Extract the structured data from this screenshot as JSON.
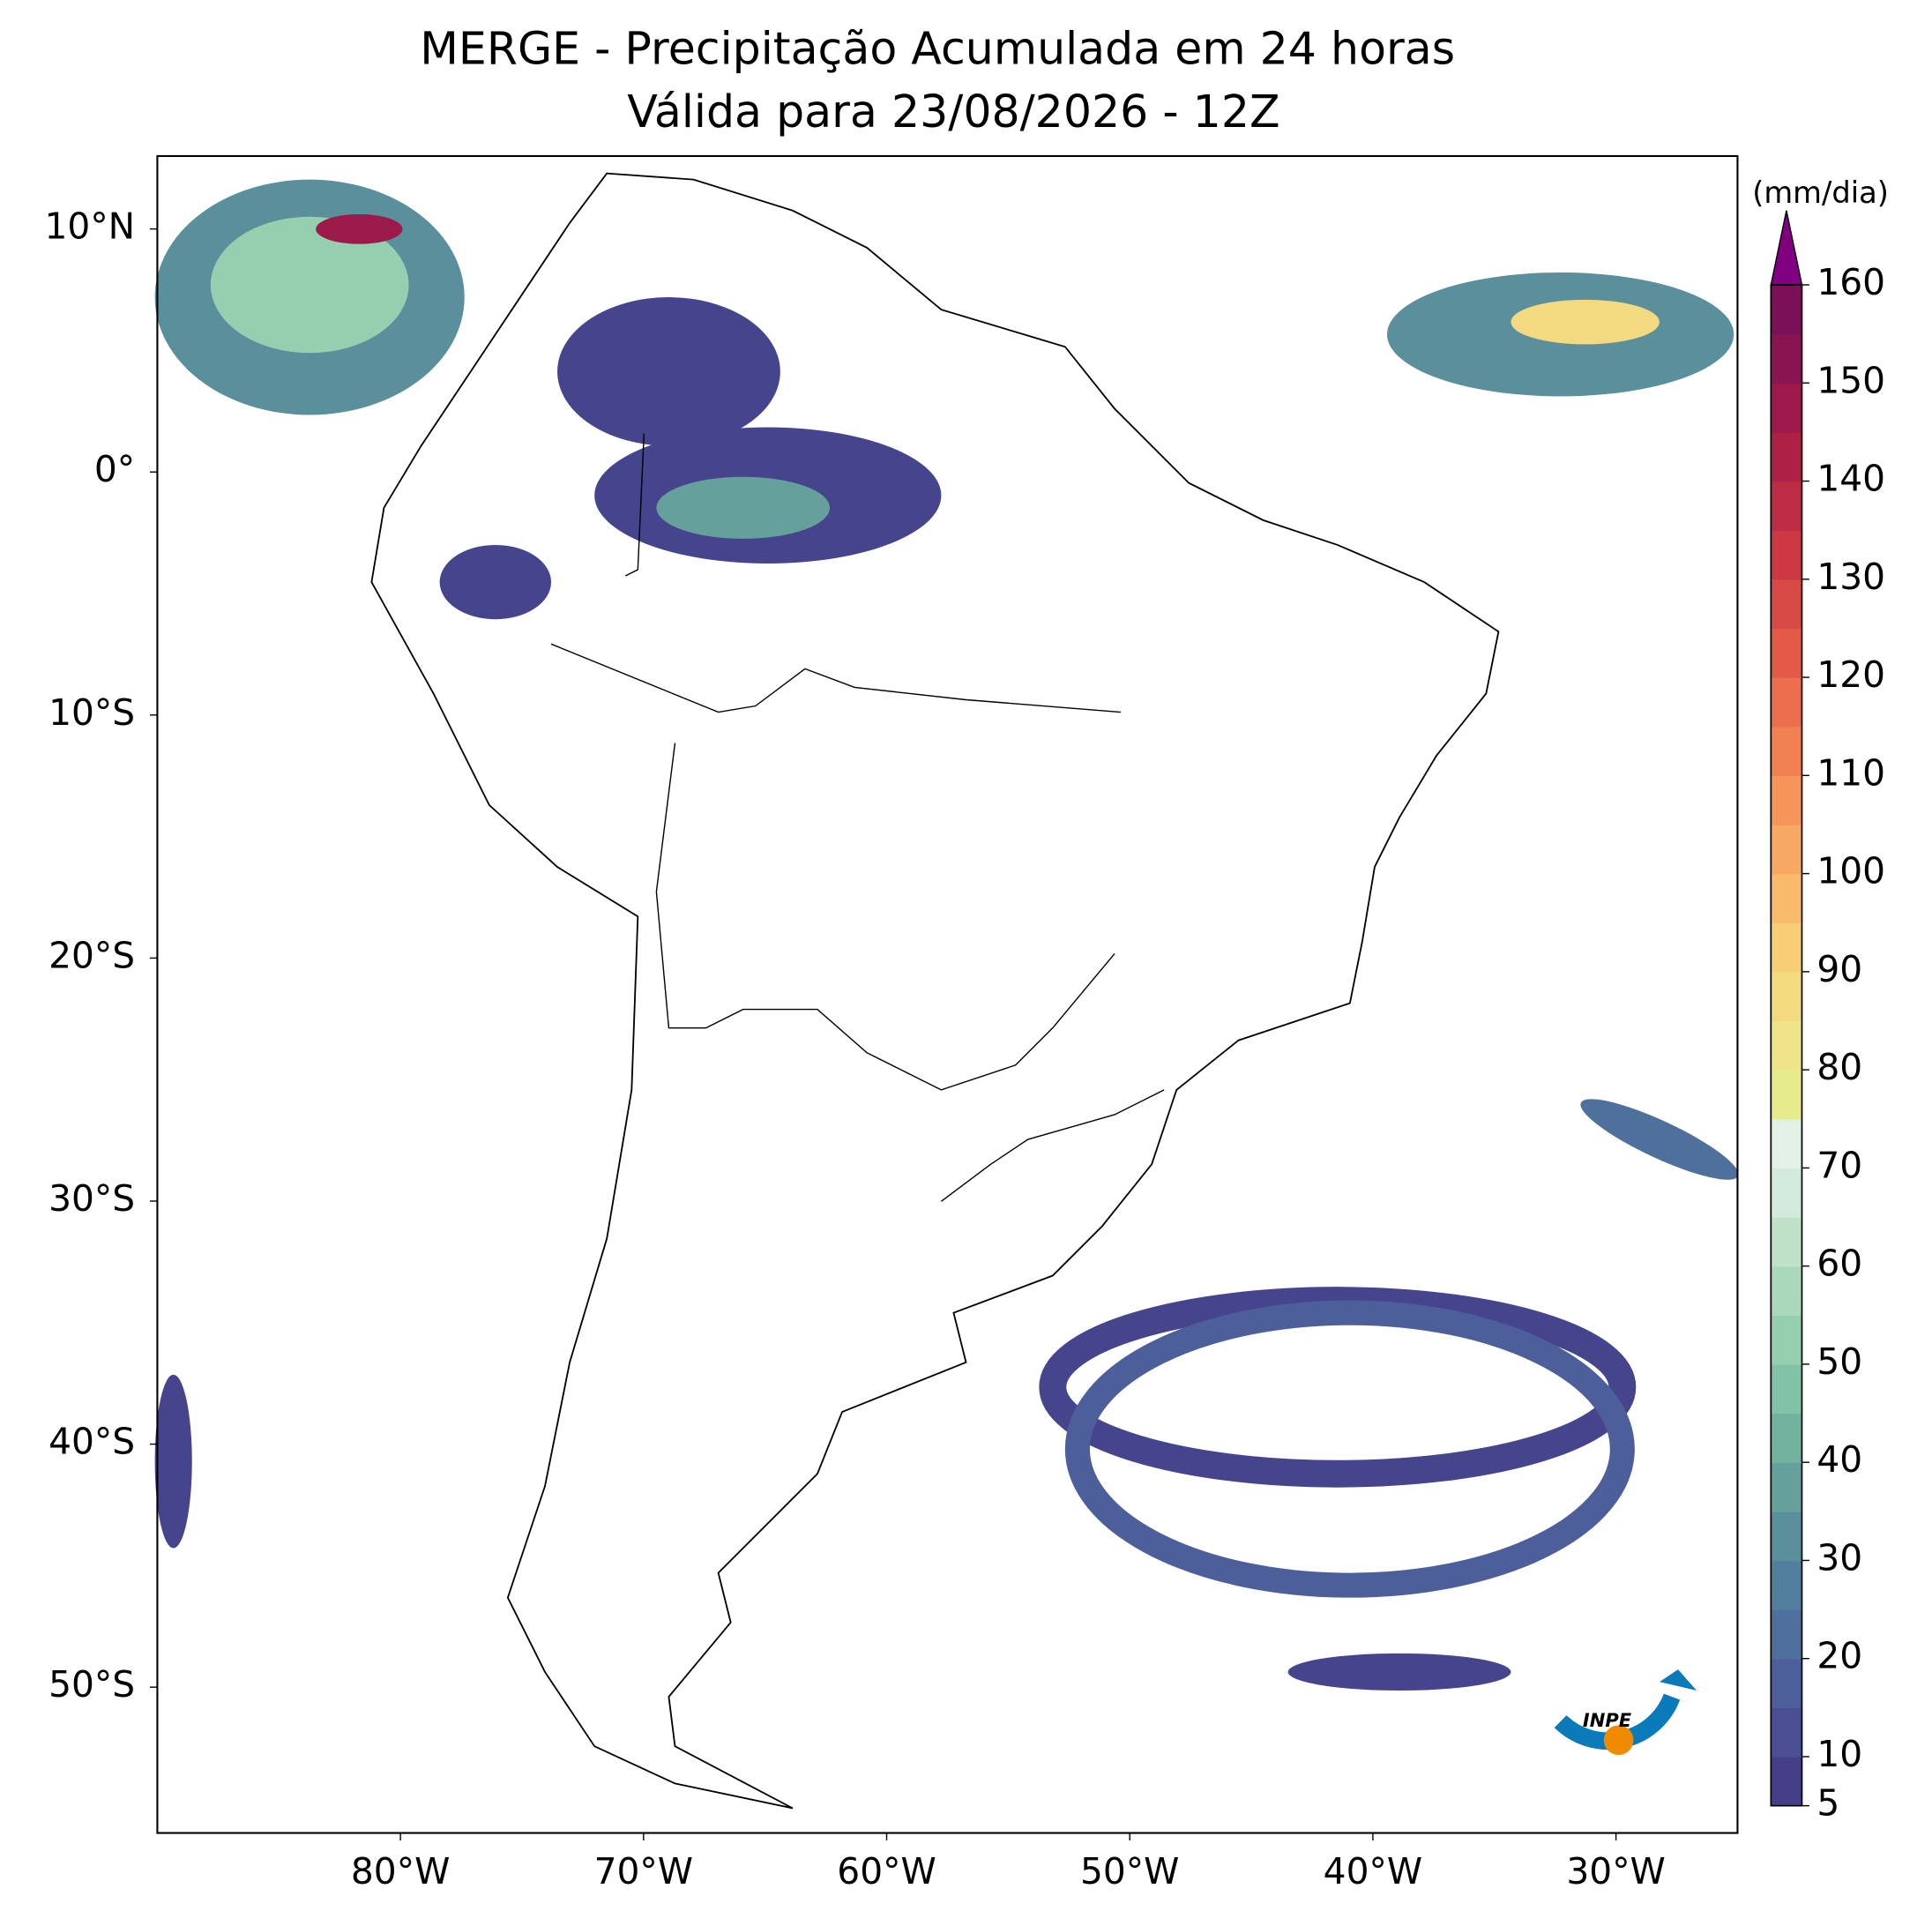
{
  "chart_data": {
    "type": "map",
    "title": "MERGE - Precipitação Acumulada em 24 horas",
    "subtitle": "Válida para 23/08/2026 - 12Z",
    "xlim": [
      -90,
      -25
    ],
    "ylim": [
      -56,
      13
    ],
    "xticks": [
      {
        "value": -80,
        "label": "80°W"
      },
      {
        "value": -70,
        "label": "70°W"
      },
      {
        "value": -60,
        "label": "60°W"
      },
      {
        "value": -50,
        "label": "50°W"
      },
      {
        "value": -40,
        "label": "40°W"
      },
      {
        "value": -30,
        "label": "30°W"
      }
    ],
    "yticks": [
      {
        "value": 10,
        "label": "10°N"
      },
      {
        "value": 0,
        "label": "0°"
      },
      {
        "value": -10,
        "label": "10°S"
      },
      {
        "value": -20,
        "label": "20°S"
      },
      {
        "value": -30,
        "label": "30°S"
      },
      {
        "value": -40,
        "label": "40°S"
      },
      {
        "value": -50,
        "label": "50°S"
      }
    ],
    "colorbar": {
      "label": "(mm/dia)",
      "lim": [
        5,
        160
      ],
      "ticks": [
        5,
        10,
        20,
        30,
        40,
        50,
        60,
        70,
        80,
        90,
        100,
        110,
        120,
        130,
        140,
        150,
        160
      ],
      "colors": [
        "#453f8a",
        "#4a4f94",
        "#4d5f9a",
        "#4f6f9c",
        "#527f9e",
        "#5a8f9c",
        "#65a09a",
        "#72b29f",
        "#82c2a6",
        "#96ceb0",
        "#aad8bb",
        "#bee1c8",
        "#d2eadb",
        "#e3f0e6",
        "#e6ec8c",
        "#eee488",
        "#f3da80",
        "#f7cd76",
        "#f8bb6b",
        "#f7a862",
        "#f5955a",
        "#f28152",
        "#ec6e4c",
        "#e35b48",
        "#d84a45",
        "#cb3a44",
        "#bd2c45",
        "#ad2147",
        "#9b1a4a",
        "#891550",
        "#7a1158"
      ],
      "extend_color": "#800080"
    },
    "logo": "INPE"
  }
}
